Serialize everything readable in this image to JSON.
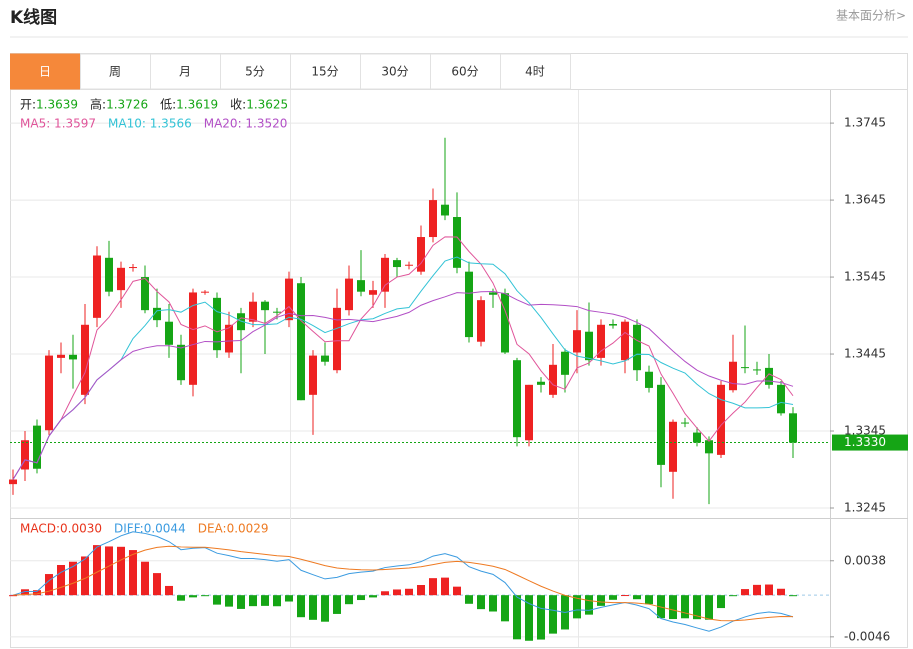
{
  "header": {
    "title": "K线图",
    "link": "基本面分析>"
  },
  "tabs": {
    "items": [
      "日",
      "周",
      "月",
      "5分",
      "15分",
      "30分",
      "60分",
      "4时"
    ],
    "active": 0
  },
  "info": {
    "ohlc": [
      {
        "label": "开:",
        "value": "1.3639"
      },
      {
        "label": "高:",
        "value": "1.3726"
      },
      {
        "label": "低:",
        "value": "1.3619"
      },
      {
        "label": "收:",
        "value": "1.3625"
      }
    ],
    "ma": [
      {
        "text": "MA5: 1.3597",
        "color": "#e0559a"
      },
      {
        "text": "MA10: 1.3566",
        "color": "#33c3d6"
      },
      {
        "text": "MA20: 1.3520",
        "color": "#b24fc6"
      }
    ],
    "macd": [
      {
        "text": "MACD:0.0030",
        "color": "#e8341c"
      },
      {
        "text": "DIFF:0.0044",
        "color": "#3b9be0"
      },
      {
        "text": "DEA:0.0029",
        "color": "#ee7a22"
      }
    ]
  },
  "chart_data": {
    "type": "candlestick",
    "up_color": "#ee2222",
    "down_color": "#15a515",
    "open": [
      1.3276,
      1.3295,
      1.3352,
      1.3346,
      1.344,
      1.3444,
      1.3392,
      1.3492,
      1.357,
      1.3528,
      1.3557,
      1.3545,
      1.3505,
      1.3487,
      1.3457,
      1.3405,
      1.3525,
      1.3518,
      1.3447,
      1.3498,
      1.3487,
      1.3513,
      1.35,
      1.3489,
      1.3537,
      1.3392,
      1.3443,
      1.3424,
      1.3502,
      1.3541,
      1.3522,
      1.3526,
      1.3567,
      1.356,
      1.3552,
      1.3597,
      1.3639,
      1.3623,
      1.3552,
      1.3461,
      1.3525,
      1.3524,
      1.3437,
      1.3333,
      1.3409,
      1.3392,
      1.3448,
      1.3447,
      1.3474,
      1.344,
      1.3484,
      1.3437,
      1.3483,
      1.3422,
      1.3405,
      1.3292,
      1.3356,
      1.3343,
      1.3333,
      1.3314,
      1.3398,
      1.3428,
      1.3425,
      1.3427,
      1.3405,
      1.3368
    ],
    "high": [
      1.3295,
      1.3345,
      1.336,
      1.345,
      1.346,
      1.347,
      1.351,
      1.3585,
      1.3592,
      1.3565,
      1.3562,
      1.356,
      1.353,
      1.351,
      1.347,
      1.353,
      1.3528,
      1.3525,
      1.35,
      1.3505,
      1.3525,
      1.3515,
      1.3505,
      1.3552,
      1.3545,
      1.345,
      1.346,
      1.353,
      1.356,
      1.358,
      1.354,
      1.3575,
      1.357,
      1.3565,
      1.3612,
      1.366,
      1.3726,
      1.3655,
      1.3565,
      1.352,
      1.353,
      1.353,
      1.344,
      1.3405,
      1.3415,
      1.3458,
      1.3452,
      1.3502,
      1.3512,
      1.349,
      1.349,
      1.349,
      1.349,
      1.343,
      1.3415,
      1.336,
      1.3362,
      1.335,
      1.3338,
      1.341,
      1.347,
      1.3482,
      1.3435,
      1.3445,
      1.341,
      1.3376
    ],
    "low": [
      1.3262,
      1.328,
      1.329,
      1.334,
      1.342,
      1.34,
      1.338,
      1.348,
      1.352,
      1.3505,
      1.3552,
      1.3498,
      1.348,
      1.344,
      1.3405,
      1.339,
      1.3522,
      1.344,
      1.344,
      1.342,
      1.348,
      1.3445,
      1.349,
      1.348,
      1.3385,
      1.334,
      1.343,
      1.342,
      1.3495,
      1.352,
      1.3505,
      1.3505,
      1.3545,
      1.3555,
      1.3548,
      1.359,
      1.3619,
      1.355,
      1.346,
      1.3455,
      1.3505,
      1.3445,
      1.3325,
      1.3325,
      1.3395,
      1.3388,
      1.3395,
      1.342,
      1.343,
      1.343,
      1.3478,
      1.342,
      1.341,
      1.3395,
      1.3272,
      1.3257,
      1.335,
      1.3325,
      1.325,
      1.331,
      1.3395,
      1.342,
      1.3418,
      1.34,
      1.3365,
      1.331
    ],
    "close": [
      1.3282,
      1.3333,
      1.3296,
      1.3443,
      1.3444,
      1.3438,
      1.3483,
      1.3573,
      1.3526,
      1.3557,
      1.3558,
      1.3502,
      1.3489,
      1.3457,
      1.3411,
      1.3525,
      1.3526,
      1.345,
      1.3483,
      1.3476,
      1.3513,
      1.3502,
      1.3499,
      1.3543,
      1.3385,
      1.3443,
      1.3435,
      1.3505,
      1.3543,
      1.3526,
      1.3528,
      1.357,
      1.3558,
      1.3561,
      1.3597,
      1.3645,
      1.3625,
      1.3557,
      1.3467,
      1.3515,
      1.3522,
      1.3447,
      1.3337,
      1.3405,
      1.3405,
      1.3431,
      1.3418,
      1.3476,
      1.3437,
      1.3483,
      1.3482,
      1.3487,
      1.3424,
      1.3401,
      1.3301,
      1.3357,
      1.3355,
      1.333,
      1.3316,
      1.3405,
      1.3435,
      1.3427,
      1.3424,
      1.3405,
      1.3368,
      1.333
    ],
    "ylim": [
      1.3232,
      1.3788
    ],
    "yticks": [
      1.3745,
      1.3645,
      1.3545,
      1.3445,
      1.3345,
      1.3245
    ],
    "last_price": {
      "value": 1.333,
      "label": "1.3330"
    },
    "macd_ylim": [
      -0.0055,
      0.0083
    ],
    "macd_yticks": [
      0.0038,
      -0.0046
    ]
  }
}
